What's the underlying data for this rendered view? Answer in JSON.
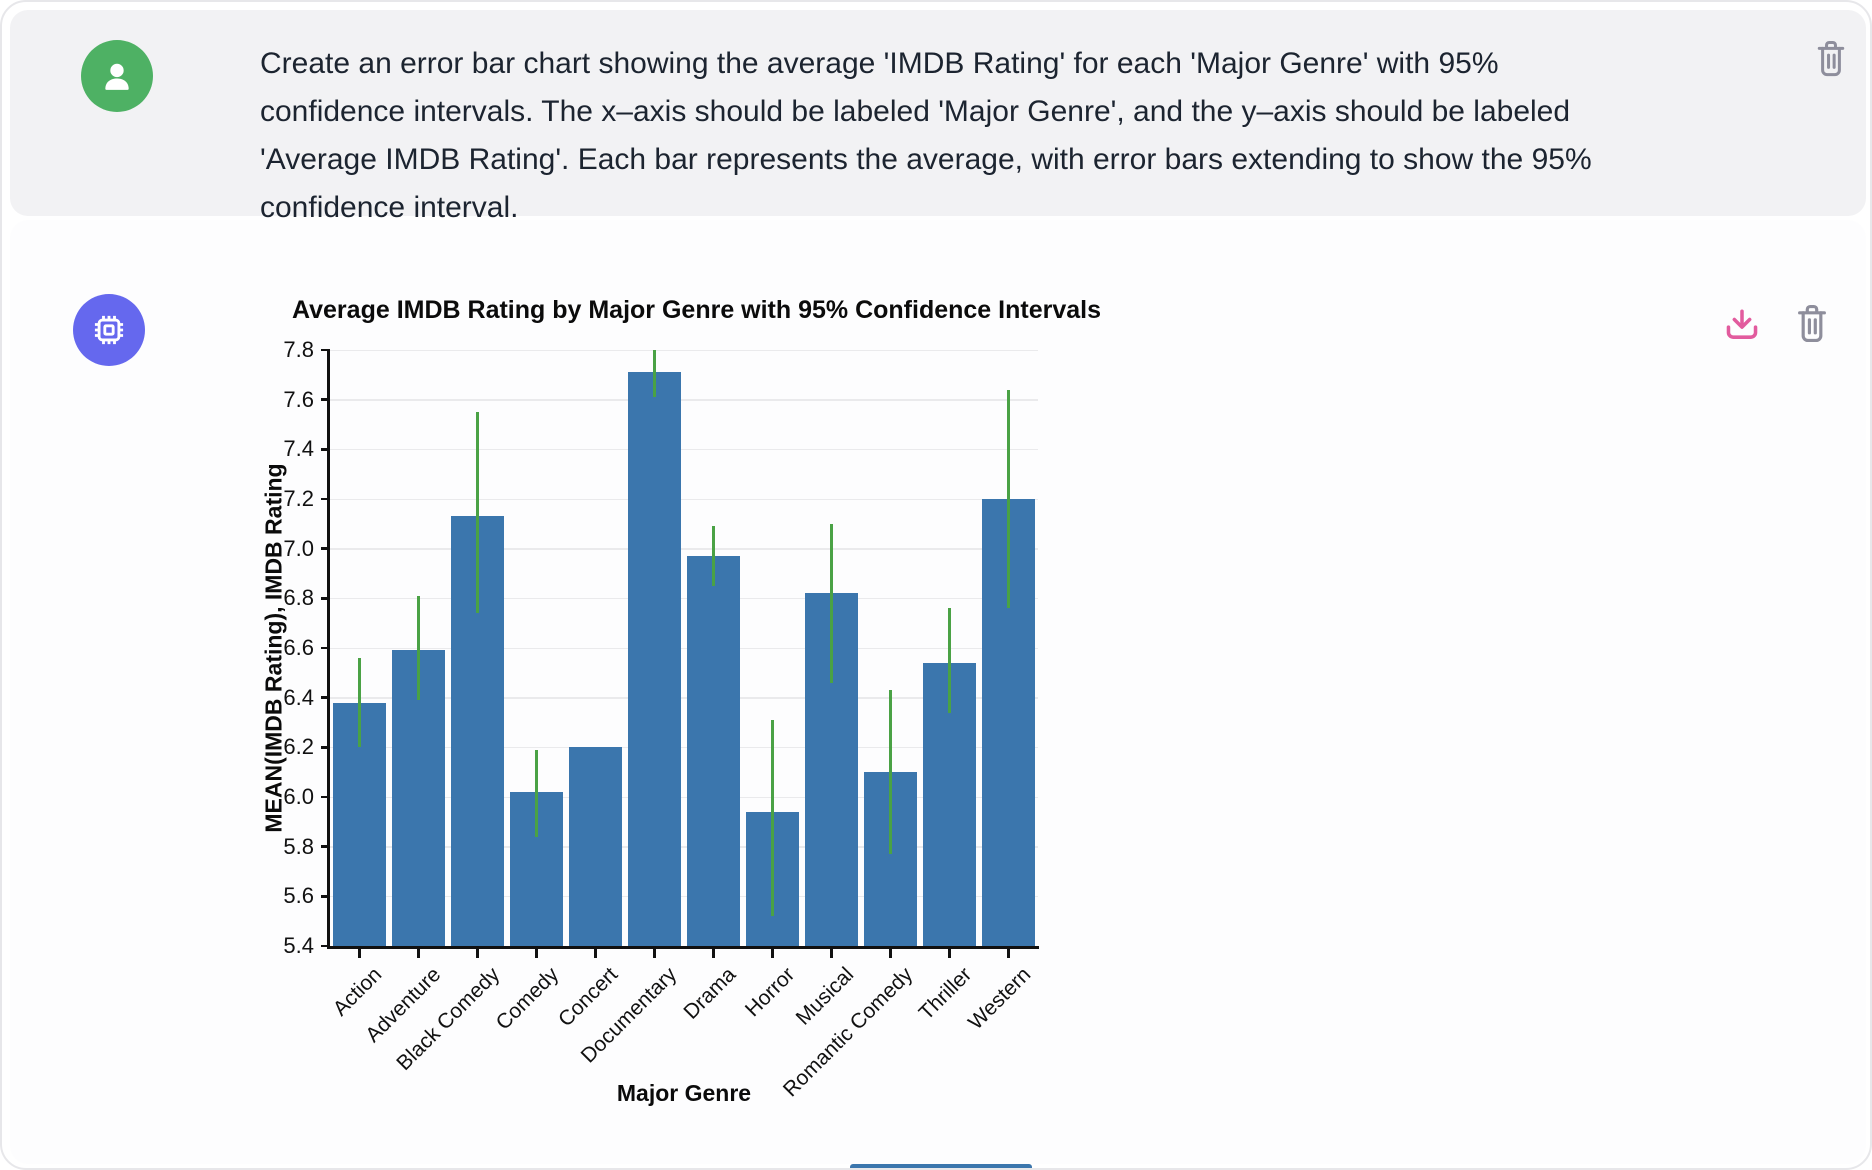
{
  "user_message": {
    "avatar_icon": "person-icon",
    "avatar_color": "#4eb164",
    "lines": [
      "Create an error bar chart showing the average 'IMDB Rating' for each 'Major Genre' with 95%",
      "confidence intervals. The x–axis should be labeled 'Major Genre', and the y–axis should be labeled",
      "'Average IMDB Rating'. Each bar represents the average, with error bars extending to show the 95%",
      "confidence interval."
    ],
    "actions": {
      "delete_icon": "trash-icon",
      "delete_color": "#8e8e9c"
    }
  },
  "assistant_message": {
    "avatar_icon": "chip-icon",
    "avatar_color": "#6568ee",
    "actions": {
      "download_icon": "download-icon",
      "download_color": "#e25b9e",
      "delete_icon": "trash-icon",
      "delete_color": "#8e8e9c"
    }
  },
  "chart_data": {
    "type": "bar",
    "title": "Average IMDB Rating by Major Genre with 95% Confidence Intervals",
    "xlabel": "Major Genre",
    "ylabel": "MEAN(IMDB Rating), IMDB Rating",
    "ylim": [
      5.4,
      7.8
    ],
    "yticks": [
      "5.4",
      "5.6",
      "5.8",
      "6.0",
      "6.2",
      "6.4",
      "6.6",
      "6.8",
      "7.0",
      "7.2",
      "7.4",
      "7.6",
      "7.8"
    ],
    "grid": true,
    "legend": null,
    "bar_color": "#3b76ad",
    "error_bar_color": "#4aa245",
    "categories": [
      "Action",
      "Adventure",
      "Black Comedy",
      "Comedy",
      "Concert",
      "Documentary",
      "Drama",
      "Horror",
      "Musical",
      "Romantic Comedy",
      "Thriller",
      "Western"
    ],
    "series": [
      {
        "name": "MEAN(IMDB Rating)",
        "values": [
          6.38,
          6.59,
          7.13,
          6.02,
          6.2,
          7.71,
          6.97,
          5.94,
          6.82,
          6.1,
          6.54,
          7.2
        ]
      }
    ],
    "error_bars_95ci": {
      "low": [
        6.2,
        6.39,
        6.74,
        5.84,
        null,
        7.61,
        6.85,
        5.52,
        6.46,
        5.77,
        6.34,
        6.76
      ],
      "high": [
        6.56,
        6.81,
        7.55,
        6.19,
        null,
        7.81,
        7.09,
        6.31,
        7.1,
        6.43,
        6.76,
        7.64
      ]
    }
  }
}
